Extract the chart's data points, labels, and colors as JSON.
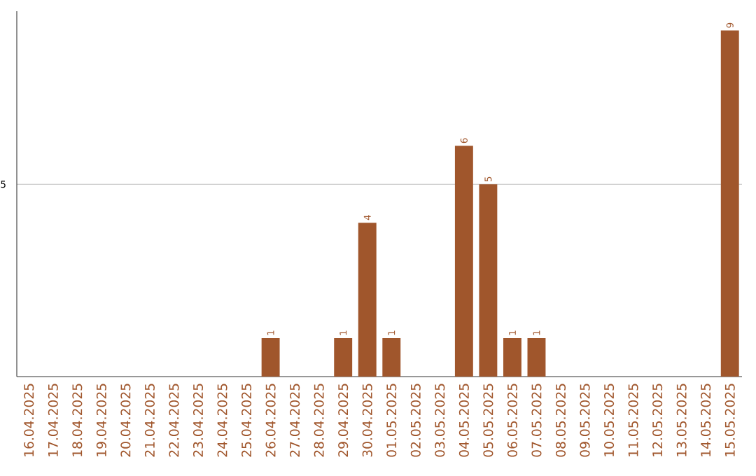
{
  "chart_data": {
    "type": "bar",
    "categories": [
      "16.04.2025",
      "17.04.2025",
      "18.04.2025",
      "19.04.2025",
      "20.04.2025",
      "21.04.2025",
      "22.04.2025",
      "23.04.2025",
      "24.04.2025",
      "25.04.2025",
      "26.04.2025",
      "27.04.2025",
      "28.04.2025",
      "29.04.2025",
      "30.04.2025",
      "01.05.2025",
      "02.05.2025",
      "03.05.2025",
      "04.05.2025",
      "05.05.2025",
      "06.05.2025",
      "07.05.2025",
      "08.05.2025",
      "09.05.2025",
      "10.05.2025",
      "11.05.2025",
      "12.05.2025",
      "13.05.2025",
      "14.05.2025",
      "15.05.2025"
    ],
    "values": [
      0,
      0,
      0,
      0,
      0,
      0,
      0,
      0,
      0,
      0,
      1,
      0,
      0,
      1,
      4,
      1,
      0,
      0,
      6,
      5,
      1,
      1,
      0,
      0,
      0,
      0,
      0,
      0,
      0,
      9
    ],
    "color": "#a0562c",
    "value_labels": [
      null,
      null,
      null,
      null,
      null,
      null,
      null,
      null,
      null,
      null,
      "1",
      null,
      null,
      "1",
      "4",
      "1",
      null,
      null,
      "6",
      "5",
      "1",
      "1",
      null,
      null,
      null,
      null,
      null,
      null,
      null,
      "9"
    ],
    "ylim": [
      0,
      9.5
    ],
    "yticks": [
      5
    ],
    "grid": "y"
  }
}
